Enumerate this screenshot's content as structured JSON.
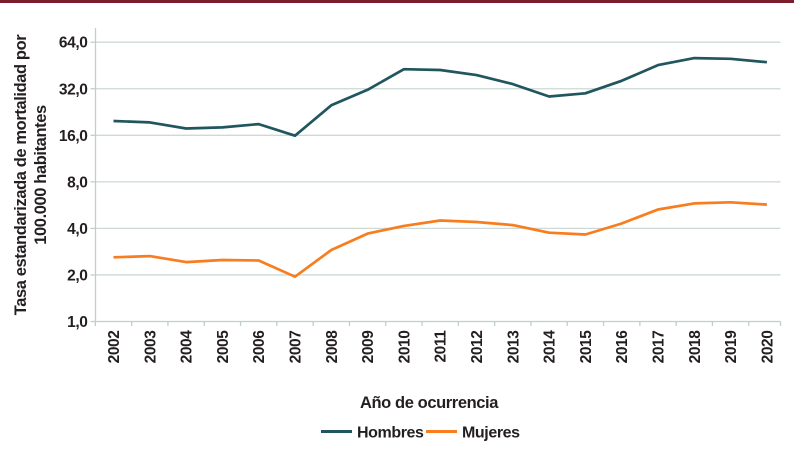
{
  "figure": {
    "top_rule_color": "#7d1f2b"
  },
  "chart_data": {
    "type": "line",
    "title": "",
    "xlabel": "Año de ocurrencia",
    "ylabel_line1": "Tasa estandarizada de mortalidad por",
    "ylabel_line2": "100.000 habitantes",
    "y_scale": "log2",
    "grid": "horizontal",
    "legend_position": "bottom",
    "ylim": [
      1.0,
      90.0
    ],
    "y_ticks": [
      {
        "value": 64,
        "label": "64,0"
      },
      {
        "value": 32,
        "label": "32,0"
      },
      {
        "value": 16,
        "label": "16,0"
      },
      {
        "value": 8,
        "label": "8,0"
      },
      {
        "value": 4,
        "label": "4,0"
      },
      {
        "value": 2,
        "label": "2,0"
      },
      {
        "value": 1,
        "label": "1,0"
      }
    ],
    "categories": [
      "2002",
      "2003",
      "2004",
      "2005",
      "2006",
      "2007",
      "2008",
      "2009",
      "2010",
      "2011",
      "2012",
      "2013",
      "2014",
      "2015",
      "2016",
      "2017",
      "2018",
      "2019",
      "2020"
    ],
    "series": [
      {
        "name": "Hombres",
        "color": "#21565f",
        "values": [
          19.8,
          19.4,
          17.7,
          18.0,
          18.9,
          15.9,
          25.0,
          31.5,
          42.8,
          42.3,
          39.2,
          34.3,
          28.5,
          29.9,
          36.0,
          45.5,
          50.5,
          50.0,
          47.5
        ]
      },
      {
        "name": "Mujeres",
        "color": "#f87d1e",
        "values": [
          2.6,
          2.65,
          2.42,
          2.5,
          2.48,
          1.95,
          2.9,
          3.7,
          4.15,
          4.5,
          4.4,
          4.2,
          3.75,
          3.65,
          4.3,
          5.3,
          5.8,
          5.9,
          5.7
        ]
      }
    ]
  }
}
